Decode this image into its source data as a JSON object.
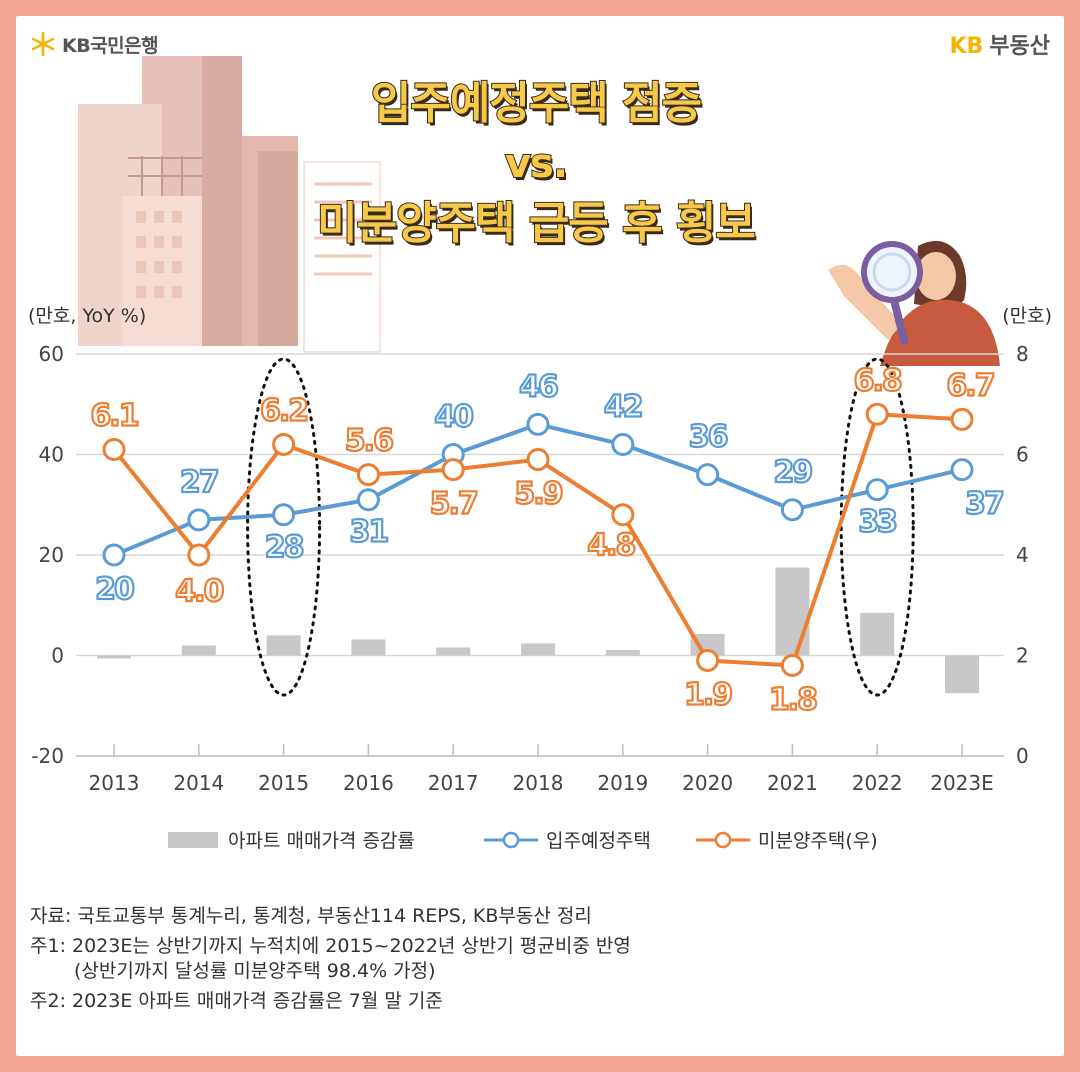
{
  "brand": {
    "bank_name": "KB국민은행",
    "kb": "KB",
    "right_name": "부동산"
  },
  "title": {
    "line1": "입주예정주택 점증",
    "line2": "vs.",
    "line3": "미분양주택 급등 후 횡보"
  },
  "colors": {
    "bar": "#c8c8c8",
    "supply_line": "#5b9bd5",
    "unsold_line": "#ed7d31",
    "frame": "#f4a593",
    "title": "#f7c948"
  },
  "chart_data": {
    "type": "bar+line",
    "left_axis_unit": "(만호, YoY %)",
    "right_axis_unit": "(만호)",
    "categories": [
      "2013",
      "2014",
      "2015",
      "2016",
      "2017",
      "2018",
      "2019",
      "2020",
      "2021",
      "2022",
      "2023E"
    ],
    "left_ylim": [
      -20,
      60
    ],
    "left_ticks": [
      "-20",
      "0",
      "20",
      "40",
      "60"
    ],
    "right_ylim": [
      0,
      8
    ],
    "right_ticks": [
      "0",
      "2",
      "4",
      "6",
      "8"
    ],
    "series": [
      {
        "name": "아파트 매매가격 증감률",
        "type": "bar",
        "axis": "left",
        "values": [
          -0.6,
          2.0,
          4.0,
          3.2,
          1.6,
          2.4,
          1.1,
          4.3,
          17.5,
          8.5,
          -7.5
        ]
      },
      {
        "name": "입주예정주택",
        "type": "line",
        "axis": "left",
        "values": [
          20,
          27,
          28,
          31,
          40,
          46,
          42,
          36,
          29,
          33,
          37
        ],
        "labels": [
          "20",
          "27",
          "28",
          "31",
          "40",
          "46",
          "42",
          "36",
          "29",
          "33",
          "37"
        ]
      },
      {
        "name": "미분양주택(우)",
        "type": "line",
        "axis": "right",
        "values": [
          6.1,
          4.0,
          6.2,
          5.6,
          5.7,
          5.9,
          4.8,
          1.9,
          1.8,
          6.8,
          6.7
        ],
        "labels": [
          "6.1",
          "4.0",
          "6.2",
          "5.6",
          "5.7",
          "5.9",
          "4.8",
          "1.9",
          "1.8",
          "6.8",
          "6.7"
        ]
      }
    ],
    "highlighted_categories": [
      "2015",
      "2022"
    ]
  },
  "footnotes": {
    "source": "자료: 국토교통부 통계누리, 통계청, 부동산114 REPS, KB부동산 정리",
    "note1": "주1: 2023E는 상반기까지 누적치에 2015~2022년 상반기 평균비중 반영",
    "note1_cont": "(상반기까지 달성률 미분양주택 98.4% 가정)",
    "note2": "주2: 2023E 아파트 매매가격 증감률은 7월 말 기준"
  }
}
